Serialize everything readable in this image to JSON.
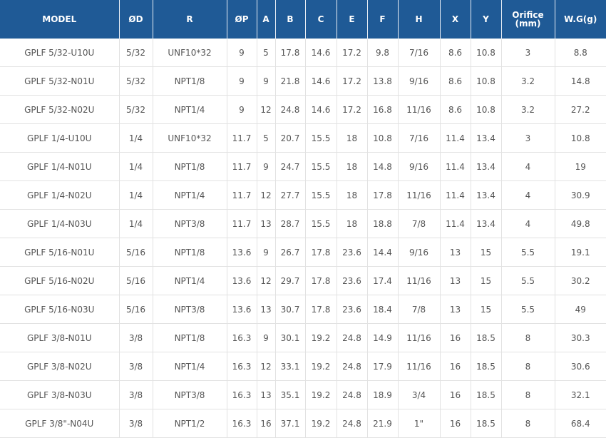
{
  "table": {
    "header": [
      "MODEL",
      "ØD",
      "R",
      "ØP",
      "A",
      "B",
      "C",
      "E",
      "F",
      "H",
      "X",
      "Y",
      "Orifice\n(mm)",
      "W.G(g)"
    ],
    "rows": [
      [
        "GPLF 5/32-U10U",
        "5/32",
        "UNF10*32",
        "9",
        "5",
        "17.8",
        "14.6",
        "17.2",
        "9.8",
        "7/16",
        "8.6",
        "10.8",
        "3",
        "8.8"
      ],
      [
        "GPLF 5/32-N01U",
        "5/32",
        "NPT1/8",
        "9",
        "9",
        "21.8",
        "14.6",
        "17.2",
        "13.8",
        "9/16",
        "8.6",
        "10.8",
        "3.2",
        "14.8"
      ],
      [
        "GPLF 5/32-N02U",
        "5/32",
        "NPT1/4",
        "9",
        "12",
        "24.8",
        "14.6",
        "17.2",
        "16.8",
        "11/16",
        "8.6",
        "10.8",
        "3.2",
        "27.2"
      ],
      [
        "GPLF 1/4-U10U",
        "1/4",
        "UNF10*32",
        "11.7",
        "5",
        "20.7",
        "15.5",
        "18",
        "10.8",
        "7/16",
        "11.4",
        "13.4",
        "3",
        "10.8"
      ],
      [
        "GPLF 1/4-N01U",
        "1/4",
        "NPT1/8",
        "11.7",
        "9",
        "24.7",
        "15.5",
        "18",
        "14.8",
        "9/16",
        "11.4",
        "13.4",
        "4",
        "19"
      ],
      [
        "GPLF 1/4-N02U",
        "1/4",
        "NPT1/4",
        "11.7",
        "12",
        "27.7",
        "15.5",
        "18",
        "17.8",
        "11/16",
        "11.4",
        "13.4",
        "4",
        "30.9"
      ],
      [
        "GPLF 1/4-N03U",
        "1/4",
        "NPT3/8",
        "11.7",
        "13",
        "28.7",
        "15.5",
        "18",
        "18.8",
        "7/8",
        "11.4",
        "13.4",
        "4",
        "49.8"
      ],
      [
        "GPLF 5/16-N01U",
        "5/16",
        "NPT1/8",
        "13.6",
        "9",
        "26.7",
        "17.8",
        "23.6",
        "14.4",
        "9/16",
        "13",
        "15",
        "5.5",
        "19.1"
      ],
      [
        "GPLF 5/16-N02U",
        "5/16",
        "NPT1/4",
        "13.6",
        "12",
        "29.7",
        "17.8",
        "23.6",
        "17.4",
        "11/16",
        "13",
        "15",
        "5.5",
        "30.2"
      ],
      [
        "GPLF 5/16-N03U",
        "5/16",
        "NPT3/8",
        "13.6",
        "13",
        "30.7",
        "17.8",
        "23.6",
        "18.4",
        "7/8",
        "13",
        "15",
        "5.5",
        "49"
      ],
      [
        "GPLF 3/8-N01U",
        "3/8",
        "NPT1/8",
        "16.3",
        "9",
        "30.1",
        "19.2",
        "24.8",
        "14.9",
        "11/16",
        "16",
        "18.5",
        "8",
        "30.3"
      ],
      [
        "GPLF 3/8-N02U",
        "3/8",
        "NPT1/4",
        "16.3",
        "12",
        "33.1",
        "19.2",
        "24.8",
        "17.9",
        "11/16",
        "16",
        "18.5",
        "8",
        "30.6"
      ],
      [
        "GPLF 3/8-N03U",
        "3/8",
        "NPT3/8",
        "16.3",
        "13",
        "35.1",
        "19.2",
        "24.8",
        "18.9",
        "3/4",
        "16",
        "18.5",
        "8",
        "32.1"
      ],
      [
        "GPLF 3/8\"-N04U",
        "3/8",
        "NPT1/2",
        "16.3",
        "16",
        "37.1",
        "19.2",
        "24.8",
        "21.9",
        "1\"",
        "16",
        "18.5",
        "8",
        "68.4"
      ]
    ]
  }
}
